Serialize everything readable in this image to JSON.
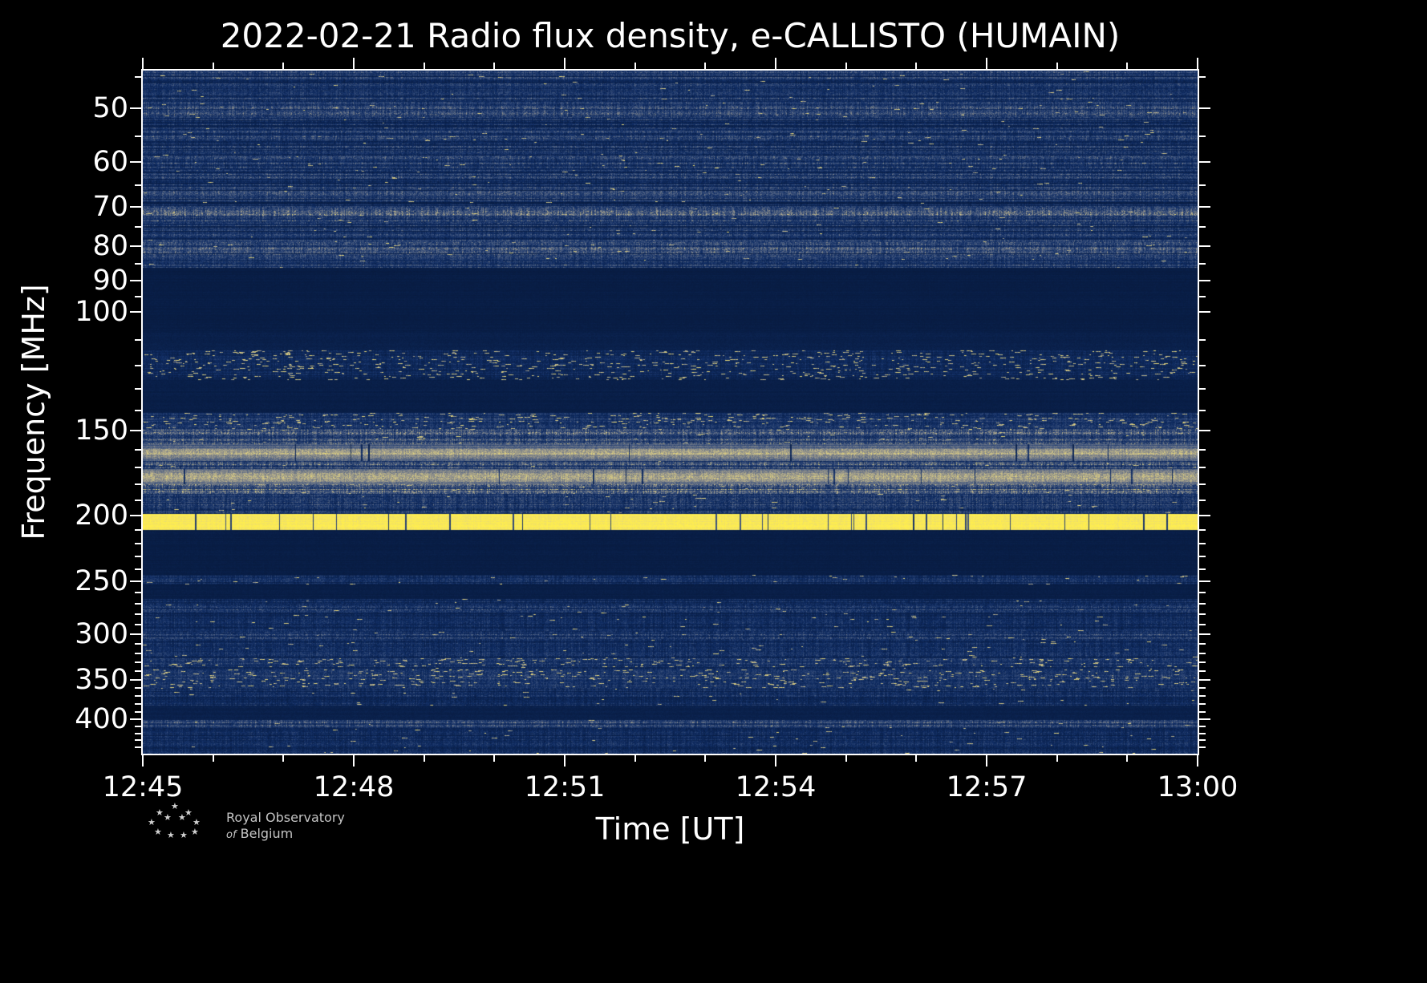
{
  "title": "2022-02-21 Radio flux density, e-CALLISTO (HUMAIN)",
  "xlabel": "Time [UT]",
  "ylabel": "Frequency [MHz]",
  "footer": {
    "line1": "Royal Observatory",
    "of": "of",
    "belgium": "Belgium"
  },
  "chart_data": {
    "type": "heatmap",
    "title": "2022-02-21 Radio flux density, e-CALLISTO (HUMAIN)",
    "date": "2022-02-21",
    "instrument": "e-CALLISTO",
    "station": "HUMAIN",
    "xlabel": "Time [UT]",
    "ylabel": "Frequency [MHz]",
    "x_ticks": [
      "12:45",
      "12:48",
      "12:51",
      "12:54",
      "12:57",
      "13:00"
    ],
    "x_span_minutes": 15,
    "x_minor_step_minutes": 1,
    "y_scale": "log",
    "y_range_mhz": [
      44,
      450
    ],
    "y_major_ticks": [
      50,
      60,
      70,
      80,
      90,
      100,
      150,
      200,
      250,
      300,
      350,
      400
    ],
    "y_minor_ticks": [
      45,
      55,
      65,
      75,
      85,
      95,
      110,
      120,
      130,
      140,
      160,
      170,
      180,
      190,
      210,
      220,
      230,
      240,
      260,
      270,
      280,
      290,
      310,
      320,
      330,
      340,
      360,
      370,
      380,
      390,
      410,
      420,
      430,
      440
    ],
    "grid": false,
    "legend": "none",
    "colormap_stops": [
      [
        0.0,
        [
          6,
          24,
          58
        ]
      ],
      [
        0.18,
        [
          16,
          45,
          100
        ]
      ],
      [
        0.4,
        [
          70,
          90,
          128
        ]
      ],
      [
        0.62,
        [
          152,
          150,
          140
        ]
      ],
      [
        0.8,
        [
          222,
          208,
          132
        ]
      ],
      [
        1.0,
        [
          255,
          238,
          78
        ]
      ]
    ],
    "features": [
      "broad noisy blue band with horizontal striations from 44 to 86 MHz",
      "quiet dark band 86-114 MHz",
      "white speckled interference band near 115-125 MHz",
      "dense noisy band 141-157 MHz",
      "persistent yellow RFI band near 158-166 MHz",
      "persistent yellow RFI band near 171-180 MHz",
      "strongest saturated yellow RFI line near 200-210 MHz with dark time gaps",
      "faint narrow noise line near 245-252 MHz",
      "moderate noise region 266-338 MHz",
      "white dashed speckle band near 340-360 MHz",
      "thin brighter line near 401-412 MHz"
    ],
    "bands": [
      {
        "f1": 44,
        "f2": 86,
        "style": "striated",
        "level": 0.2
      },
      {
        "f1": 49,
        "f2": 51.5,
        "style": "noise",
        "level": 0.26
      },
      {
        "f1": 54,
        "f2": 56,
        "style": "noise",
        "level": 0.24
      },
      {
        "f1": 59,
        "f2": 61.5,
        "style": "noise",
        "level": 0.26
      },
      {
        "f1": 70,
        "f2": 73.5,
        "style": "noise",
        "level": 0.33
      },
      {
        "f1": 79,
        "f2": 82,
        "style": "noise",
        "level": 0.3
      },
      {
        "f1": 86,
        "f2": 107,
        "style": "quiet",
        "level": 0.05
      },
      {
        "f1": 107,
        "f2": 114,
        "style": "quiet",
        "level": 0.07
      },
      {
        "f1": 114,
        "f2": 126,
        "style": "speckle",
        "level": 0.13
      },
      {
        "f1": 126,
        "f2": 141,
        "style": "quiet",
        "level": 0.06
      },
      {
        "f1": 141,
        "f2": 149,
        "style": "speckle",
        "level": 0.2
      },
      {
        "f1": 149,
        "f2": 157,
        "style": "noise",
        "level": 0.35
      },
      {
        "f1": 157,
        "f2": 166,
        "style": "yellow",
        "level": 0.66
      },
      {
        "f1": 166,
        "f2": 171,
        "style": "noise",
        "level": 0.34
      },
      {
        "f1": 171,
        "f2": 180,
        "style": "yellow",
        "level": 0.78
      },
      {
        "f1": 180,
        "f2": 186,
        "style": "noise",
        "level": 0.38
      },
      {
        "f1": 186,
        "f2": 199,
        "style": "noise",
        "level": 0.24
      },
      {
        "f1": 199,
        "f2": 210,
        "style": "bright",
        "level": 0.97
      },
      {
        "f1": 210,
        "f2": 245,
        "style": "quiet",
        "level": 0.05
      },
      {
        "f1": 245,
        "f2": 253,
        "style": "noise",
        "level": 0.16
      },
      {
        "f1": 253,
        "f2": 266,
        "style": "quiet",
        "level": 0.06
      },
      {
        "f1": 266,
        "f2": 338,
        "style": "noise",
        "level": 0.16
      },
      {
        "f1": 270,
        "f2": 276,
        "style": "noise",
        "level": 0.22
      },
      {
        "f1": 296,
        "f2": 305,
        "style": "noise",
        "level": 0.24
      },
      {
        "f1": 325,
        "f2": 335,
        "style": "speckle",
        "level": 0.2
      },
      {
        "f1": 338,
        "f2": 360,
        "style": "speckle",
        "level": 0.21
      },
      {
        "f1": 360,
        "f2": 382,
        "style": "noise",
        "level": 0.16
      },
      {
        "f1": 382,
        "f2": 401,
        "style": "quiet",
        "level": 0.07
      },
      {
        "f1": 401,
        "f2": 412,
        "style": "noise",
        "level": 0.26
      },
      {
        "f1": 412,
        "f2": 450,
        "style": "noise",
        "level": 0.15
      }
    ]
  }
}
